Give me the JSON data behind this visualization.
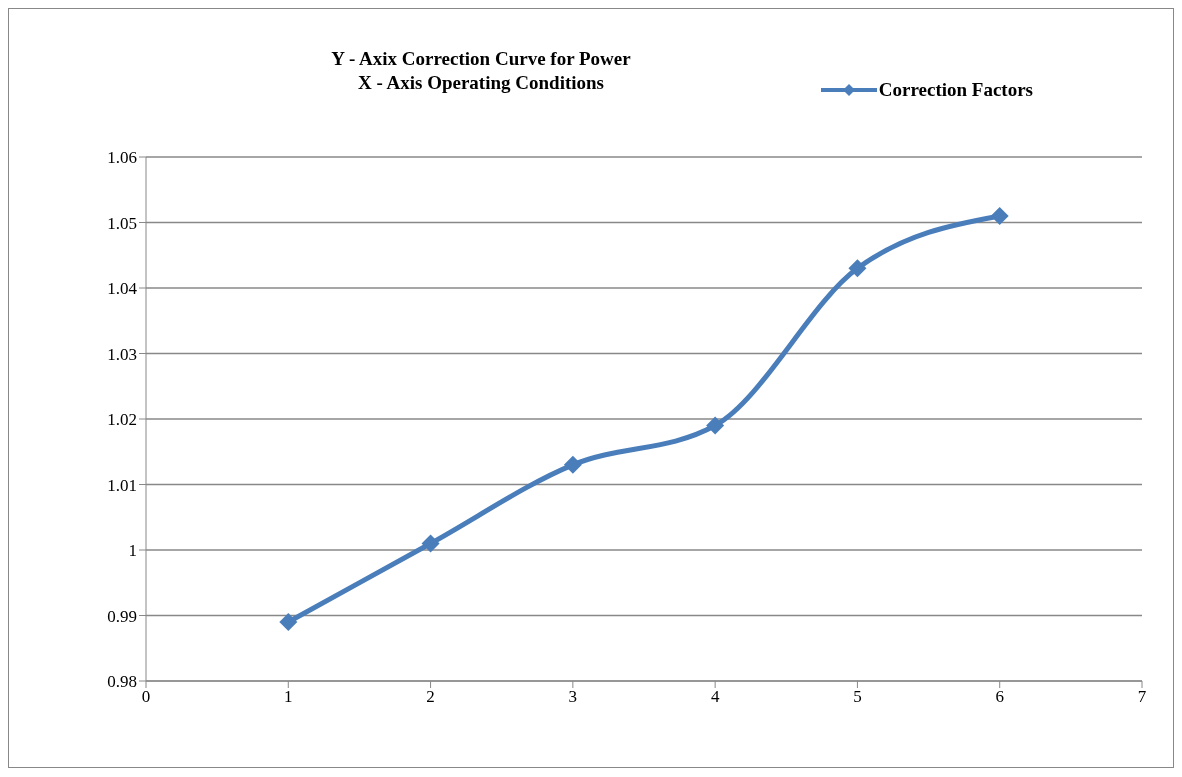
{
  "chart_data": {
    "type": "line",
    "title": "Y - Axix Correction Curve for Power",
    "subtitle": "X - Axis Operating Conditions",
    "x": [
      1,
      2,
      3,
      4,
      5,
      6
    ],
    "series": [
      {
        "name": "Correction Factors",
        "color": "#4a7ebb",
        "values": [
          0.989,
          1.001,
          1.013,
          1.019,
          1.043,
          1.051
        ]
      }
    ],
    "xlim": [
      0,
      7
    ],
    "xticks": [
      0,
      1,
      2,
      3,
      4,
      5,
      6,
      7
    ],
    "ylim": [
      0.98,
      1.06
    ],
    "yticks": [
      0.98,
      0.99,
      1,
      1.01,
      1.02,
      1.03,
      1.04,
      1.05,
      1.06
    ],
    "grid": "y",
    "legend": "top right",
    "marker": "diamond",
    "line_style": "solid"
  }
}
